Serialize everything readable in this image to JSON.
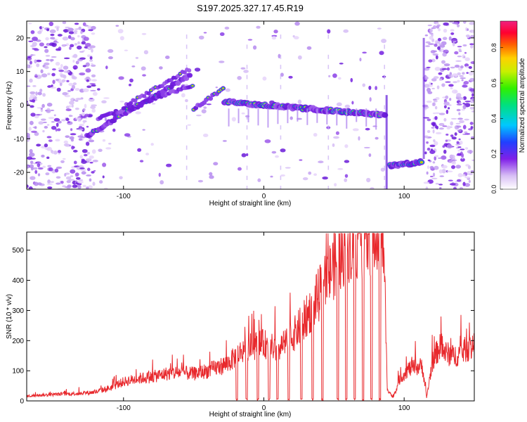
{
  "figure": {
    "title": "S197.2025.327.17.45.R19"
  },
  "chart_data": [
    {
      "type": "heatmap",
      "panel": "spectrogram",
      "xlabel": "Height of straight line (km)",
      "ylabel": "Frequency (Hz)",
      "xlim": [
        -169,
        150
      ],
      "ylim": [
        -25,
        25
      ],
      "xticks": [
        -100,
        0,
        100
      ],
      "yticks": [
        -20,
        -10,
        0,
        10,
        20
      ],
      "colorbar": {
        "label": "Normalized spectral amplitude",
        "range": [
          0,
          0.95
        ],
        "ticks": [
          0,
          0.2,
          0.4,
          0.6,
          0.8
        ],
        "tick_labels": [
          "0.0",
          "0.2",
          "0.4",
          "0.6",
          "0.8"
        ]
      },
      "features": [
        {
          "name": "main-line",
          "x": [
            -25,
            87
          ],
          "freq": [
            0.5,
            -3
          ]
        },
        {
          "name": "rising-lines",
          "x": [
            -125,
            -50
          ],
          "freq": [
            -8,
            8
          ]
        },
        {
          "name": "low-band",
          "x": [
            90,
            113
          ],
          "freq": [
            -18,
            -17
          ]
        }
      ]
    },
    {
      "type": "line",
      "panel": "snr",
      "xlabel": "Height of straight line (km)",
      "ylabel": "SNR (10 * v/v)",
      "xlim": [
        -169,
        150
      ],
      "ylim": [
        0,
        560
      ],
      "xticks": [
        -100,
        0,
        100
      ],
      "yticks": [
        0,
        100,
        200,
        300,
        400,
        500
      ],
      "series": [
        {
          "name": "SNR",
          "color": "#e8282c",
          "x": [
            -169,
            -160,
            -150,
            -140,
            -130,
            -120,
            -110,
            -100,
            -90,
            -80,
            -70,
            -60,
            -50,
            -40,
            -30,
            -25,
            -20,
            -15,
            -10,
            -5,
            0,
            5,
            10,
            15,
            20,
            25,
            30,
            35,
            40,
            45,
            50,
            55,
            60,
            65,
            70,
            75,
            80,
            85,
            88,
            92,
            97,
            103,
            108,
            113,
            116,
            120,
            125,
            130,
            135,
            140,
            145,
            150
          ],
          "y": [
            15,
            18,
            20,
            22,
            24,
            28,
            40,
            60,
            70,
            75,
            85,
            90,
            85,
            95,
            110,
            120,
            140,
            160,
            170,
            175,
            180,
            170,
            160,
            180,
            200,
            230,
            260,
            300,
            340,
            380,
            430,
            470,
            500,
            510,
            515,
            520,
            525,
            530,
            40,
            10,
            70,
            100,
            105,
            110,
            10,
            120,
            170,
            150,
            140,
            150,
            165,
            170
          ]
        }
      ]
    }
  ]
}
